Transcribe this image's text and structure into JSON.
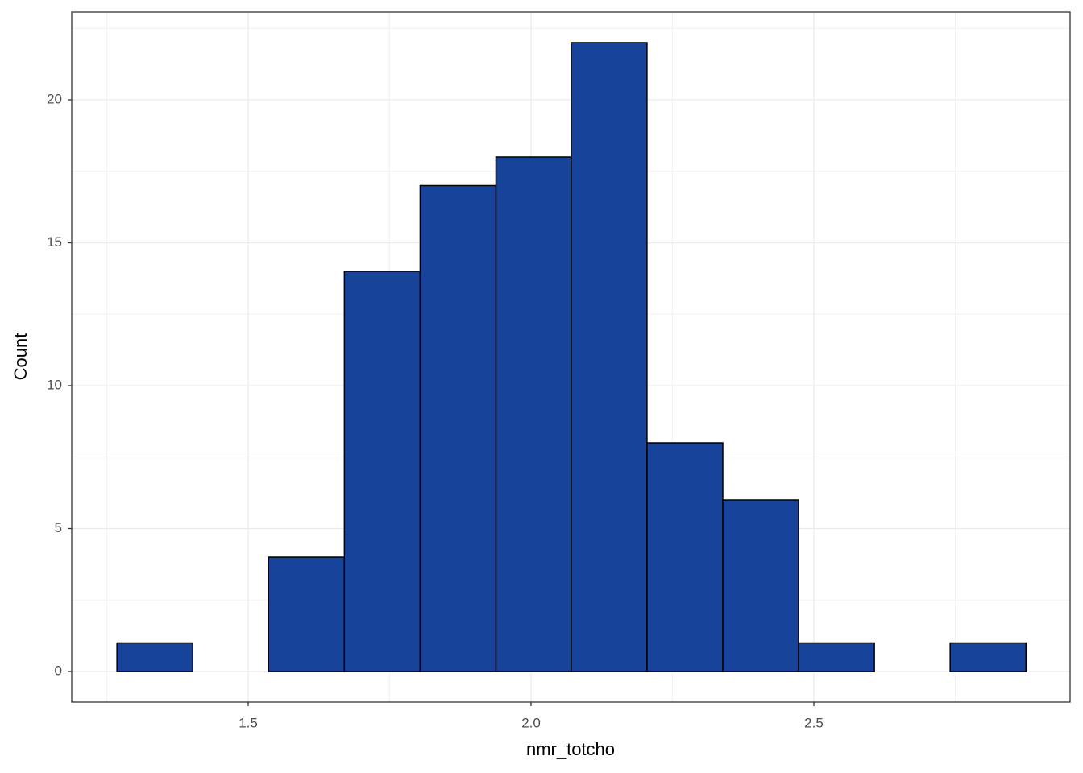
{
  "chart_data": {
    "type": "histogram",
    "x_label": "nmr_totcho",
    "y_label": "Count",
    "bins": [
      1.268,
      1.402,
      1.536,
      1.67,
      1.804,
      1.938,
      2.071,
      2.205,
      2.339,
      2.473,
      2.607,
      2.741,
      2.875
    ],
    "values": [
      1,
      0,
      4,
      14,
      17,
      18,
      22,
      8,
      6,
      1,
      0,
      1
    ],
    "color": "#18439a",
    "xlim": [
      1.188,
      2.953
    ],
    "ylim": [
      -1.07,
      23.07
    ],
    "xticks": [
      {
        "value": 1.5,
        "label": "1.5"
      },
      {
        "value": 2.0,
        "label": "2.0"
      },
      {
        "value": 2.5,
        "label": "2.5"
      }
    ],
    "yticks": [
      0,
      5,
      10,
      15,
      20
    ],
    "grid": true
  }
}
